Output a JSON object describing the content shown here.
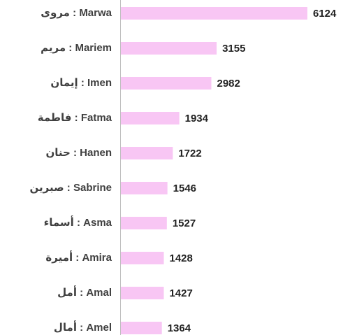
{
  "chart_data": {
    "type": "hbar",
    "categories": [
      "مروى : Marwa",
      "مريم  : Mariem",
      "إيمان : Imen",
      "فاطمة : Fatma",
      "حنان : Hanen",
      "صبرين : Sabrine",
      "أسماء : Asma",
      "أميرة : Amira",
      "أمل : Amal",
      "أمال : Amel"
    ],
    "values": [
      6124,
      3155,
      2982,
      1934,
      1722,
      1546,
      1527,
      1428,
      1427,
      1364
    ],
    "color": "#f8c6f4"
  }
}
